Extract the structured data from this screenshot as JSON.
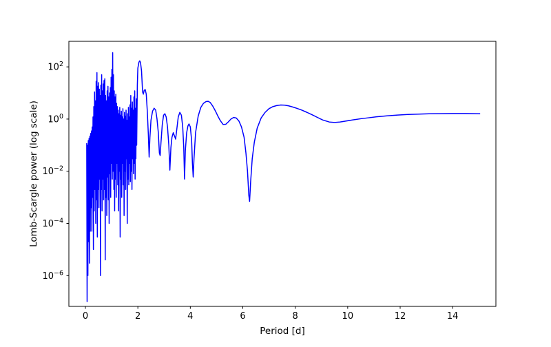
{
  "chart_data": {
    "type": "line",
    "title": "",
    "xlabel": "Period [d]",
    "ylabel": "Lomb-Scargle power (log scale)",
    "grid": false,
    "legend": null,
    "background_color": "#ffffff",
    "axis_color": "#000000",
    "line_color": "#0000ff",
    "x_axis": {
      "scale": "linear",
      "lim": [
        -0.63,
        15.65
      ],
      "ticks": [
        0,
        2,
        4,
        6,
        8,
        10,
        12,
        14
      ]
    },
    "y_axis": {
      "scale": "log",
      "lim_log10": [
        -7.18,
        2.98
      ],
      "tick_exponents": [
        2,
        0,
        -2,
        -4,
        -6
      ],
      "tick_labels": [
        "10^2",
        "10^0",
        "10^-2",
        "10^-4",
        "10^-6"
      ]
    },
    "series": [
      {
        "name": "lomb-scargle-power",
        "points": [
          [
            0.05,
            0.12
          ],
          [
            0.065,
            1e-07
          ],
          [
            0.08,
            0.1
          ],
          [
            0.095,
            1e-06
          ],
          [
            0.11,
            0.15
          ],
          [
            0.125,
            2e-05
          ],
          [
            0.14,
            0.18
          ],
          [
            0.155,
            3e-06
          ],
          [
            0.17,
            0.22
          ],
          [
            0.185,
            5e-05
          ],
          [
            0.2,
            0.28
          ],
          [
            0.215,
            0.0004
          ],
          [
            0.23,
            0.35
          ],
          [
            0.245,
            5e-05
          ],
          [
            0.26,
            0.5
          ],
          [
            0.275,
            0.001
          ],
          [
            0.29,
            1.2
          ],
          [
            0.305,
            1e-05
          ],
          [
            0.32,
            3
          ],
          [
            0.335,
            0.0003
          ],
          [
            0.35,
            11
          ],
          [
            0.365,
            0.002
          ],
          [
            0.38,
            5
          ],
          [
            0.395,
            0.0001
          ],
          [
            0.41,
            28
          ],
          [
            0.425,
            0.0008
          ],
          [
            0.44,
            60
          ],
          [
            0.455,
            3e-05
          ],
          [
            0.47,
            18
          ],
          [
            0.485,
            0.002
          ],
          [
            0.5,
            25
          ],
          [
            0.515,
            0.0004
          ],
          [
            0.53,
            14
          ],
          [
            0.545,
            0.005
          ],
          [
            0.56,
            8
          ],
          [
            0.575,
            1e-06
          ],
          [
            0.59,
            20
          ],
          [
            0.605,
            0.002
          ],
          [
            0.62,
            50
          ],
          [
            0.635,
            0.0003
          ],
          [
            0.65,
            12
          ],
          [
            0.665,
            0.005
          ],
          [
            0.68,
            22
          ],
          [
            0.695,
            0.0008
          ],
          [
            0.71,
            30
          ],
          [
            0.725,
            0.002
          ],
          [
            0.74,
            35
          ],
          [
            0.755,
            4e-06
          ],
          [
            0.77,
            8
          ],
          [
            0.785,
            0.001
          ],
          [
            0.8,
            5
          ],
          [
            0.815,
            0.0002
          ],
          [
            0.83,
            12
          ],
          [
            0.845,
            0.006
          ],
          [
            0.86,
            18
          ],
          [
            0.875,
            0.0008
          ],
          [
            0.89,
            7
          ],
          [
            0.905,
            0.0001
          ],
          [
            0.92,
            10
          ],
          [
            0.935,
            0.008
          ],
          [
            0.95,
            16
          ],
          [
            0.965,
            0.001
          ],
          [
            0.98,
            40
          ],
          [
            0.995,
            0.02
          ],
          [
            1.01,
            80
          ],
          [
            1.025,
            0.005
          ],
          [
            1.04,
            350
          ],
          [
            1.055,
            0.01
          ],
          [
            1.07,
            50
          ],
          [
            1.085,
            0.002
          ],
          [
            1.1,
            12
          ],
          [
            1.115,
            0.0003
          ],
          [
            1.13,
            7
          ],
          [
            1.145,
            0.005
          ],
          [
            1.16,
            9
          ],
          [
            1.175,
            0.001
          ],
          [
            1.19,
            4
          ],
          [
            1.205,
            0.02
          ],
          [
            1.22,
            3
          ],
          [
            1.235,
            0.003
          ],
          [
            1.25,
            2.2
          ],
          [
            1.265,
            0.0003
          ],
          [
            1.28,
            1.6
          ],
          [
            1.295,
            0.01
          ],
          [
            1.31,
            2.8
          ],
          [
            1.325,
            3e-05
          ],
          [
            1.34,
            1.4
          ],
          [
            1.355,
            0.005
          ],
          [
            1.37,
            2.0
          ],
          [
            1.385,
            0.001
          ],
          [
            1.4,
            1.2
          ],
          [
            1.415,
            0.02
          ],
          [
            1.43,
            2.5
          ],
          [
            1.445,
            0.003
          ],
          [
            1.46,
            1.0
          ],
          [
            1.475,
            0.0002
          ],
          [
            1.49,
            1.8
          ],
          [
            1.505,
            0.01
          ],
          [
            1.52,
            1.3
          ],
          [
            1.535,
            0.002
          ],
          [
            1.55,
            2.2
          ],
          [
            1.565,
            0.03
          ],
          [
            1.58,
            0.9
          ],
          [
            1.595,
            0.0001
          ],
          [
            1.61,
            1.6
          ],
          [
            1.625,
            0.005
          ],
          [
            1.64,
            2.8
          ],
          [
            1.655,
            0.003
          ],
          [
            1.67,
            1.2
          ],
          [
            1.685,
            0.02
          ],
          [
            1.7,
            3.5
          ],
          [
            1.715,
            0.004
          ],
          [
            1.73,
            8
          ],
          [
            1.745,
            0.01
          ],
          [
            1.76,
            2.6
          ],
          [
            1.775,
            0.002
          ],
          [
            1.79,
            4.5
          ],
          [
            1.805,
            0.03
          ],
          [
            1.82,
            2.2
          ],
          [
            1.835,
            0.008
          ],
          [
            1.85,
            7
          ],
          [
            1.865,
            0.02
          ],
          [
            1.88,
            12
          ],
          [
            1.895,
            0.005
          ],
          [
            1.91,
            2.6
          ],
          [
            1.925,
            0.03
          ],
          [
            1.94,
            6
          ],
          [
            1.955,
            0.1
          ],
          [
            1.98,
            20
          ],
          [
            2.0,
            90
          ],
          [
            2.04,
            150
          ],
          [
            2.07,
            170
          ],
          [
            2.1,
            150
          ],
          [
            2.14,
            70
          ],
          [
            2.18,
            11
          ],
          [
            2.21,
            9
          ],
          [
            2.24,
            12.5
          ],
          [
            2.28,
            13.5
          ],
          [
            2.32,
            9
          ],
          [
            2.36,
            2
          ],
          [
            2.4,
            0.25
          ],
          [
            2.43,
            0.035
          ],
          [
            2.46,
            0.2
          ],
          [
            2.5,
            0.9
          ],
          [
            2.56,
            2.0
          ],
          [
            2.62,
            2.6
          ],
          [
            2.68,
            2.2
          ],
          [
            2.73,
            1.0
          ],
          [
            2.78,
            0.3
          ],
          [
            2.82,
            0.05
          ],
          [
            2.85,
            0.04
          ],
          [
            2.88,
            0.12
          ],
          [
            2.93,
            0.6
          ],
          [
            2.98,
            1.4
          ],
          [
            3.03,
            1.6
          ],
          [
            3.08,
            1.2
          ],
          [
            3.13,
            0.5
          ],
          [
            3.18,
            0.1
          ],
          [
            3.22,
            0.011
          ],
          [
            3.26,
            0.08
          ],
          [
            3.3,
            0.2
          ],
          [
            3.35,
            0.3
          ],
          [
            3.4,
            0.22
          ],
          [
            3.44,
            0.17
          ],
          [
            3.49,
            0.45
          ],
          [
            3.54,
            1.2
          ],
          [
            3.6,
            1.8
          ],
          [
            3.66,
            1.4
          ],
          [
            3.71,
            0.5
          ],
          [
            3.75,
            0.08
          ],
          [
            3.78,
            0.005
          ],
          [
            3.81,
            0.06
          ],
          [
            3.86,
            0.3
          ],
          [
            3.91,
            0.55
          ],
          [
            3.95,
            0.65
          ],
          [
            4.0,
            0.5
          ],
          [
            4.05,
            0.15
          ],
          [
            4.08,
            0.02
          ],
          [
            4.11,
            0.006
          ],
          [
            4.14,
            0.03
          ],
          [
            4.2,
            0.3
          ],
          [
            4.3,
            1.3
          ],
          [
            4.4,
            2.8
          ],
          [
            4.5,
            4.0
          ],
          [
            4.6,
            4.7
          ],
          [
            4.68,
            4.8
          ],
          [
            4.76,
            4.3
          ],
          [
            4.85,
            3.2
          ],
          [
            4.95,
            2.1
          ],
          [
            5.05,
            1.3
          ],
          [
            5.15,
            0.85
          ],
          [
            5.25,
            0.62
          ],
          [
            5.35,
            0.63
          ],
          [
            5.45,
            0.78
          ],
          [
            5.55,
            1.0
          ],
          [
            5.65,
            1.15
          ],
          [
            5.75,
            1.1
          ],
          [
            5.85,
            0.85
          ],
          [
            5.95,
            0.5
          ],
          [
            6.05,
            0.2
          ],
          [
            6.12,
            0.05
          ],
          [
            6.18,
            0.01
          ],
          [
            6.23,
            0.0012
          ],
          [
            6.26,
            0.0007
          ],
          [
            6.3,
            0.004
          ],
          [
            6.36,
            0.03
          ],
          [
            6.44,
            0.13
          ],
          [
            6.55,
            0.45
          ],
          [
            6.7,
            1.1
          ],
          [
            6.85,
            1.8
          ],
          [
            7.0,
            2.5
          ],
          [
            7.15,
            3.0
          ],
          [
            7.3,
            3.3
          ],
          [
            7.45,
            3.45
          ],
          [
            7.6,
            3.4
          ],
          [
            7.75,
            3.2
          ],
          [
            7.9,
            2.9
          ],
          [
            8.05,
            2.6
          ],
          [
            8.25,
            2.2
          ],
          [
            8.45,
            1.8
          ],
          [
            8.65,
            1.45
          ],
          [
            8.85,
            1.15
          ],
          [
            9.05,
            0.92
          ],
          [
            9.3,
            0.77
          ],
          [
            9.5,
            0.74
          ],
          [
            9.7,
            0.77
          ],
          [
            9.9,
            0.83
          ],
          [
            10.2,
            0.93
          ],
          [
            10.5,
            1.03
          ],
          [
            10.8,
            1.12
          ],
          [
            11.1,
            1.22
          ],
          [
            11.5,
            1.33
          ],
          [
            11.9,
            1.42
          ],
          [
            12.3,
            1.5
          ],
          [
            12.7,
            1.55
          ],
          [
            13.1,
            1.59
          ],
          [
            13.5,
            1.61
          ],
          [
            14.0,
            1.63
          ],
          [
            14.5,
            1.63
          ],
          [
            15.05,
            1.6
          ]
        ]
      }
    ]
  }
}
